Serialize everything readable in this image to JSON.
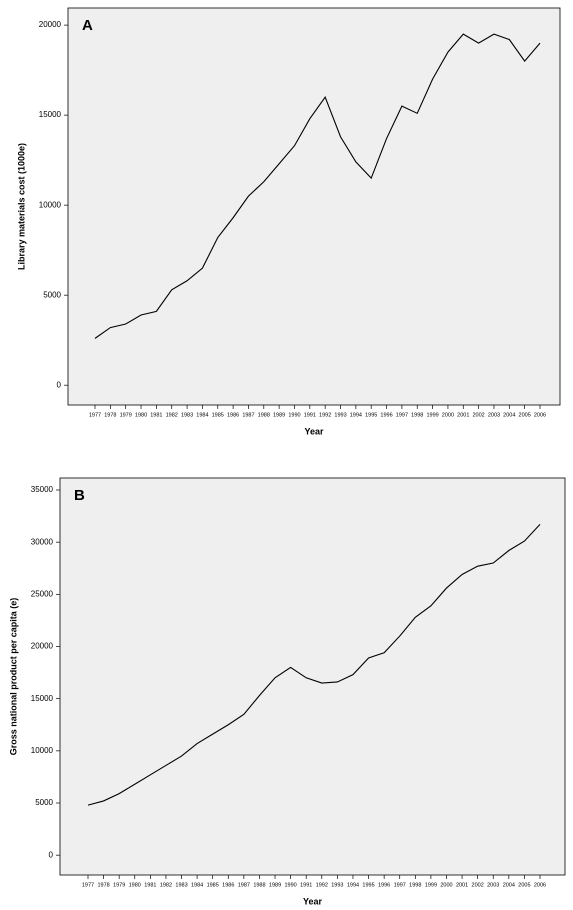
{
  "chart_data": [
    {
      "type": "line",
      "title": "A",
      "x_label": "Year",
      "y_label": "Library materials cost (1000e)",
      "categories": [
        "1977",
        "1978",
        "1979",
        "1980",
        "1981",
        "1982",
        "1983",
        "1984",
        "1985",
        "1986",
        "1987",
        "1988",
        "1989",
        "1990",
        "1991",
        "1992",
        "1993",
        "1994",
        "1995",
        "1996",
        "1997",
        "1998",
        "1999",
        "2000",
        "2001",
        "2002",
        "2003",
        "2004",
        "2005",
        "2006"
      ],
      "values": [
        2600,
        3200,
        3400,
        3900,
        4100,
        5300,
        5800,
        6500,
        8200,
        9300,
        10500,
        11300,
        12300,
        13300,
        14800,
        16000,
        13800,
        12400,
        11500,
        13700,
        15500,
        15100,
        17000,
        18500,
        19500,
        19000,
        19500,
        19200,
        18000,
        19000
      ],
      "color": "#000000",
      "ylim": [
        -1100,
        20950
      ],
      "yticks": [
        0,
        5000,
        10000,
        15000,
        20000
      ]
    },
    {
      "type": "line",
      "title": "B",
      "x_label": "Year",
      "y_label": "Gross national product per capita (e)",
      "categories": [
        "1977",
        "1978",
        "1979",
        "1980",
        "1981",
        "1982",
        "1983",
        "1984",
        "1985",
        "1986",
        "1987",
        "1988",
        "1989",
        "1990",
        "1991",
        "1992",
        "1993",
        "1994",
        "1995",
        "1996",
        "1997",
        "1998",
        "1999",
        "2000",
        "2001",
        "2002",
        "2003",
        "2004",
        "2005",
        "2006"
      ],
      "values": [
        4800,
        5200,
        5900,
        6800,
        7700,
        8600,
        9500,
        10700,
        11600,
        12500,
        13500,
        15300,
        17000,
        18000,
        17000,
        16500,
        16600,
        17300,
        18900,
        19400,
        21000,
        22800,
        23900,
        25600,
        26900,
        27700,
        28000,
        29200,
        30100,
        31700
      ],
      "color": "#000000",
      "ylim": [
        -1900,
        36150
      ],
      "yticks": [
        0,
        5000,
        10000,
        15000,
        20000,
        25000,
        30000,
        35000
      ]
    }
  ]
}
